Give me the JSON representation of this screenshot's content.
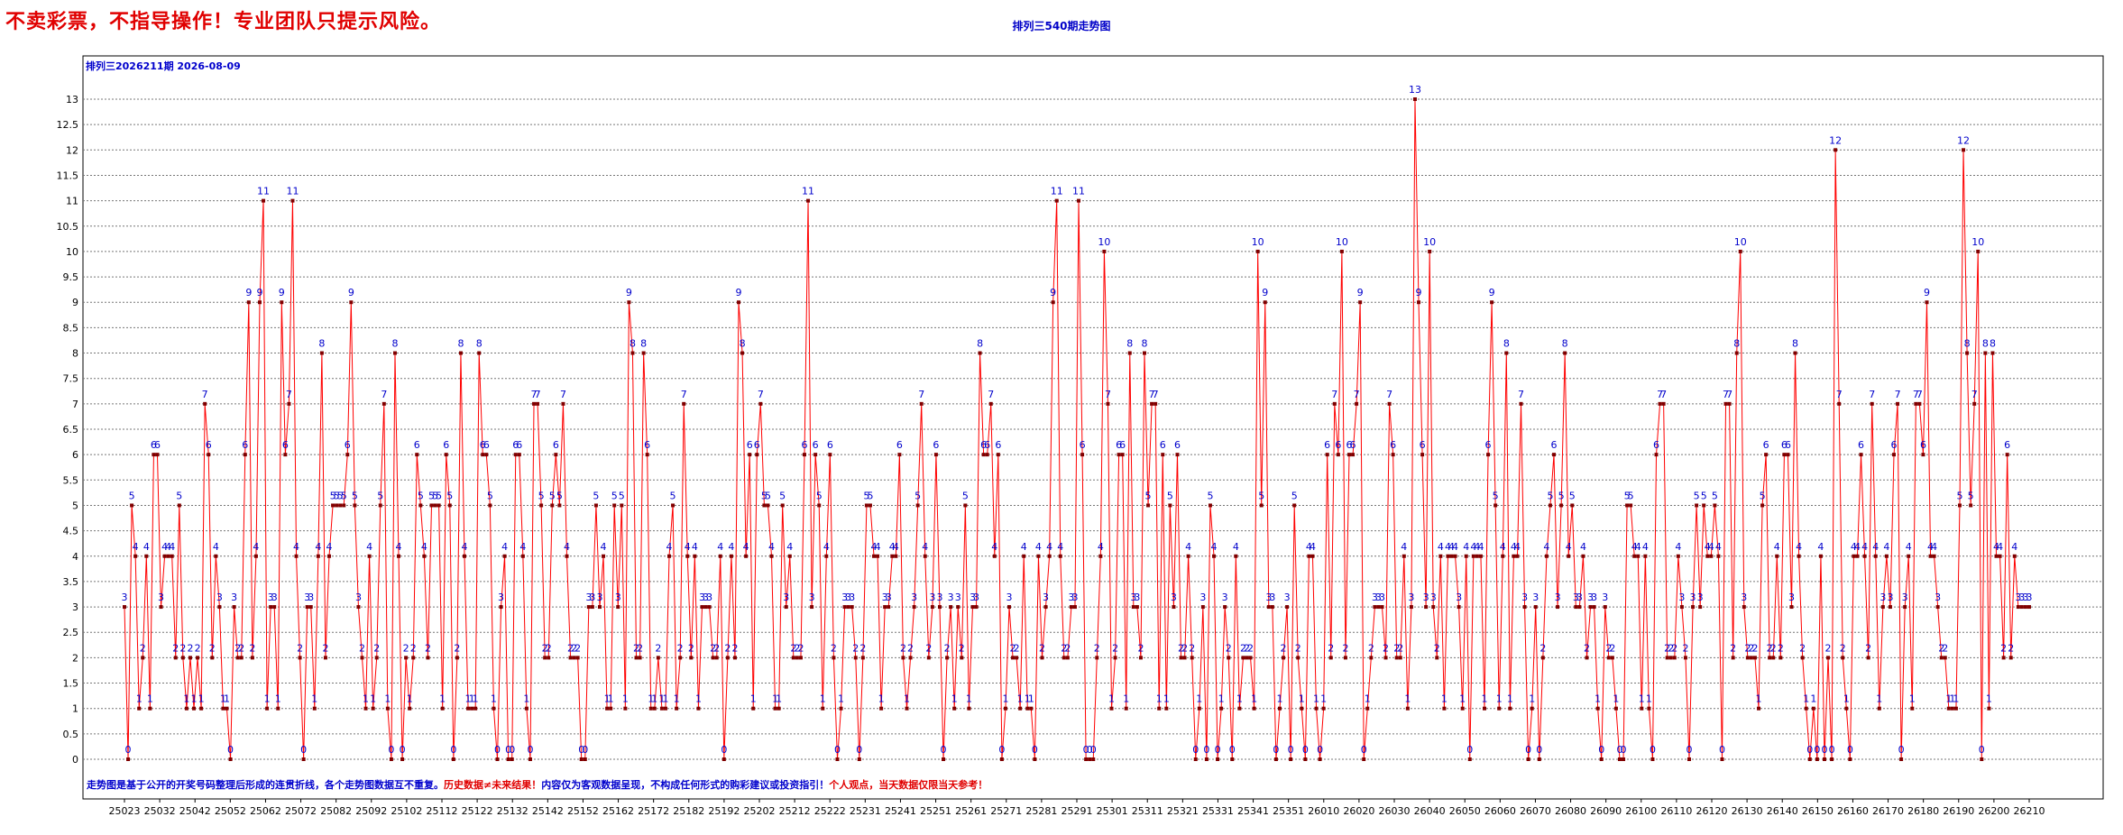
{
  "banner": "不卖彩票，不指导操作！专业团队只提示风险。",
  "chart_data": {
    "type": "line",
    "title": "排列三540期走势图",
    "subtitle": "排列三2026211期 2026-08-09",
    "footnote_parts": [
      {
        "text": "走势图是基于公开的开奖号码整理后形成的连贯折线，各个走势图数据互不重复。",
        "color": "#0000cc"
      },
      {
        "text": "历史数据≠未来结果！",
        "color": "#e00000"
      },
      {
        "text": "内容仅为客观数据呈现，不构成任何形式的购彩建议或投资指引！",
        "color": "#0000cc"
      },
      {
        "text": "个人观点，当天数据仅限当天参考！",
        "color": "#e00000"
      }
    ],
    "ylim": [
      0,
      13
    ],
    "yticks": [
      "0",
      "0.5",
      "1",
      "1.5",
      "2",
      "2.5",
      "3",
      "3.5",
      "4",
      "4.5",
      "5",
      "5.5",
      "6",
      "6.5",
      "7",
      "7.5",
      "8",
      "8.5",
      "9",
      "9.5",
      "10",
      "10.5",
      "11",
      "11.5",
      "12",
      "12.5",
      "13"
    ],
    "x_tick_labels": [
      "25023",
      "25032",
      "25042",
      "25052",
      "25062",
      "25072",
      "25082",
      "25092",
      "25102",
      "25112",
      "25122",
      "25132",
      "25142",
      "25152",
      "25162",
      "25172",
      "25182",
      "25192",
      "25202",
      "25212",
      "25222",
      "25231",
      "25241",
      "25251",
      "25261",
      "25271",
      "25281",
      "25291",
      "25301",
      "25311",
      "25321",
      "25331",
      "25341",
      "25351",
      "26010",
      "26020",
      "26030",
      "26040",
      "26050",
      "26060",
      "26070",
      "26080",
      "26090",
      "26100",
      "26110",
      "26120",
      "26130",
      "26140",
      "26150",
      "26160",
      "26170",
      "26180",
      "26190",
      "26200",
      "26210"
    ],
    "grid": true,
    "colors": {
      "line": "#ff0000",
      "point": "#800000",
      "label": "#0000cc",
      "grid": "#777777"
    },
    "values": [
      3,
      0,
      5,
      4,
      1,
      2,
      4,
      1,
      6,
      6,
      3,
      4,
      4,
      4,
      2,
      5,
      2,
      1,
      2,
      1,
      2,
      1,
      7,
      6,
      2,
      4,
      3,
      1,
      1,
      0,
      3,
      2,
      2,
      6,
      9,
      2,
      4,
      9,
      11,
      1,
      3,
      3,
      1,
      9,
      6,
      7,
      11,
      4,
      2,
      0,
      3,
      3,
      1,
      4,
      8,
      2,
      4,
      5,
      5,
      5,
      5,
      6,
      9,
      5,
      3,
      2,
      1,
      4,
      1,
      2,
      5,
      7,
      1,
      0,
      8,
      4,
      0,
      2,
      1,
      2,
      6,
      5,
      4,
      2,
      5,
      5,
      5,
      1,
      6,
      5,
      0,
      2,
      8,
      4,
      1,
      1,
      1,
      8,
      6,
      6,
      5,
      1,
      0,
      3,
      4,
      0,
      0,
      6,
      6,
      4,
      1,
      0,
      7,
      7,
      5,
      2,
      2,
      5,
      6,
      5,
      7,
      4,
      2,
      2,
      2,
      0,
      0,
      3,
      3,
      5,
      3,
      4,
      1,
      1,
      5,
      3,
      5,
      1,
      9,
      8,
      2,
      2,
      8,
      6,
      1,
      1,
      2,
      1,
      1,
      4,
      5,
      1,
      2,
      7,
      4,
      2,
      4,
      1,
      3,
      3,
      3,
      2,
      2,
      4,
      0,
      2,
      4,
      2,
      9,
      8,
      4,
      6,
      1,
      6,
      7,
      5,
      5,
      4,
      1,
      1,
      5,
      3,
      4,
      2,
      2,
      2,
      6,
      11,
      3,
      6,
      5,
      1,
      4,
      6,
      2,
      0,
      1,
      3,
      3,
      3,
      2,
      0,
      2,
      5,
      5,
      4,
      4,
      1,
      3,
      3,
      4,
      4,
      6,
      2,
      1,
      2,
      3,
      5,
      7,
      4,
      2,
      3,
      6,
      3,
      0,
      2,
      3,
      1,
      3,
      2,
      5,
      1,
      3,
      3,
      8,
      6,
      6,
      7,
      4,
      6,
      0,
      1,
      3,
      2,
      2,
      1,
      4,
      1,
      1,
      0,
      4,
      2,
      3,
      4,
      9,
      11,
      4,
      2,
      2,
      3,
      3,
      11,
      6,
      0,
      0,
      0,
      2,
      4,
      10,
      7,
      1,
      2,
      6,
      6,
      1,
      8,
      3,
      3,
      2,
      8,
      5,
      7,
      7,
      1,
      6,
      1,
      5,
      3,
      6,
      2,
      2,
      4,
      2,
      0,
      1,
      3,
      0,
      5,
      4,
      0,
      1,
      3,
      2,
      0,
      4,
      1,
      2,
      2,
      2,
      1,
      10,
      5,
      9,
      3,
      3,
      0,
      1,
      2,
      3,
      0,
      5,
      2,
      1,
      0,
      4,
      4,
      1,
      0,
      1,
      6,
      2,
      7,
      6,
      10,
      2,
      6,
      6,
      7,
      9,
      0,
      1,
      2,
      3,
      3,
      3,
      2,
      7,
      6,
      2,
      2,
      4,
      1,
      3,
      13,
      9,
      6,
      3,
      10,
      3,
      2,
      4,
      1,
      4,
      4,
      4,
      3,
      1,
      4,
      0,
      4,
      4,
      4,
      1,
      6,
      9,
      5,
      1,
      4,
      8,
      1,
      4,
      4,
      7,
      3,
      0,
      1,
      3,
      0,
      2,
      4,
      5,
      6,
      3,
      5,
      8,
      4,
      5,
      3,
      3,
      4,
      2,
      3,
      3,
      1,
      0,
      3,
      2,
      2,
      1,
      0,
      0,
      5,
      5,
      4,
      4,
      1,
      4,
      1,
      0,
      6,
      7,
      7,
      2,
      2,
      2,
      4,
      3,
      2,
      0,
      3,
      5,
      3,
      5,
      4,
      4,
      5,
      4,
      0,
      7,
      7,
      2,
      8,
      10,
      3,
      2,
      2,
      2,
      1,
      5,
      6,
      2,
      2,
      4,
      2,
      6,
      6,
      3,
      8,
      4,
      2,
      1,
      0,
      1,
      0,
      4,
      0,
      2,
      0,
      12,
      7,
      2,
      1,
      0,
      4,
      4,
      6,
      4,
      2,
      7,
      4,
      1,
      3,
      4,
      3,
      6,
      7,
      0,
      3,
      4,
      1,
      7,
      7,
      6,
      9,
      4,
      4,
      3,
      2,
      2,
      1,
      1,
      1,
      5,
      12,
      8,
      5,
      7,
      10,
      0,
      8,
      1,
      8,
      4,
      4,
      2,
      6,
      2,
      4,
      3,
      3,
      3,
      3
    ]
  }
}
